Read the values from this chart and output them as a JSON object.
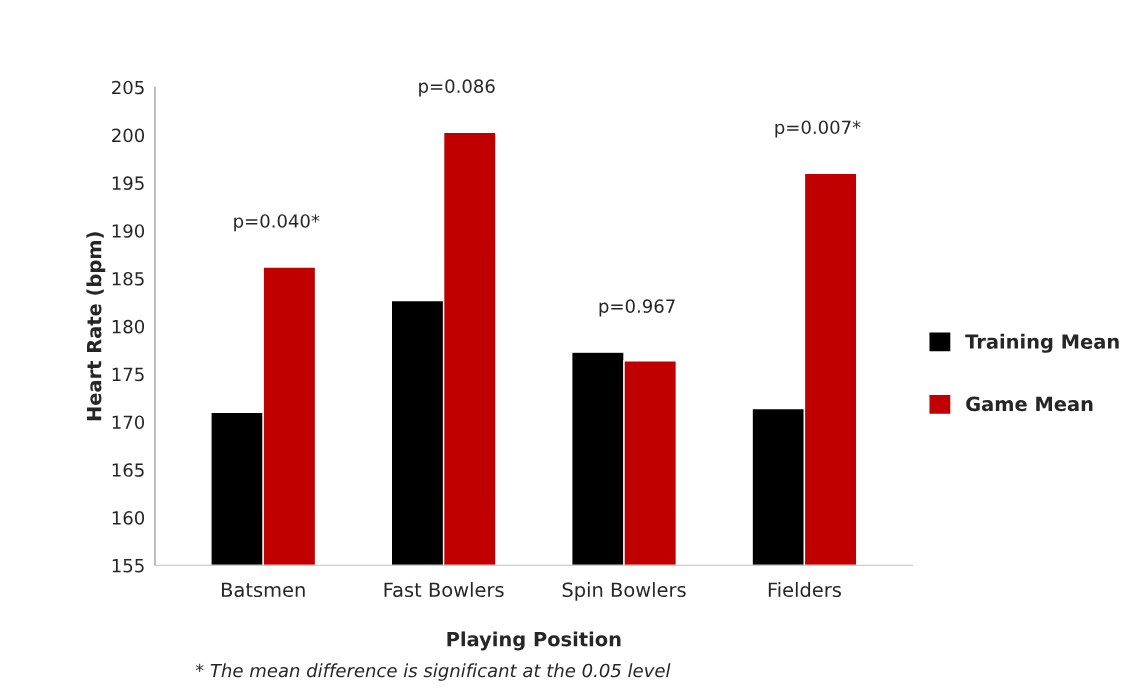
{
  "chart_data": {
    "type": "bar",
    "categories": [
      "Batsmen",
      "Fast Bowlers",
      "Spin Bowlers",
      "Fielders"
    ],
    "series": [
      {
        "name": "Training Mean",
        "color": "#000000",
        "values": [
          171.0,
          182.7,
          177.3,
          171.4
        ]
      },
      {
        "name": "Game Mean",
        "color": "#c00000",
        "values": [
          186.2,
          200.3,
          176.4,
          196.0
        ]
      }
    ],
    "xlabel": "Playing Position",
    "ylabel": "Heart Rate (bpm)",
    "ylim": [
      155,
      205
    ],
    "yticks": [
      155,
      160,
      165,
      170,
      175,
      180,
      185,
      190,
      195,
      200,
      205
    ],
    "grid": false,
    "legend": "right",
    "annotations": [
      "p=0.040*",
      "p=0.086",
      "p=0.967",
      "p=0.007*",
      "* The mean difference is significant at the 0.05 level"
    ]
  }
}
